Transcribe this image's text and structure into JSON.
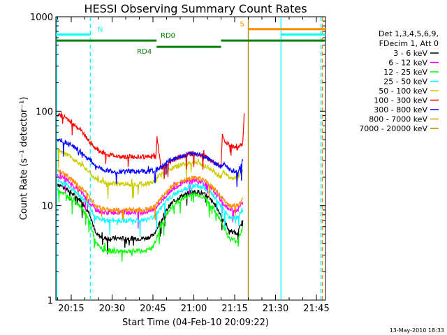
{
  "chart_data": {
    "type": "line",
    "title": "HESSI Observing Summary Count Rates",
    "xlabel": "Start Time (04-Feb-10 20:09:22)",
    "ylabel": "Count Rate (s⁻¹ detector⁻¹)",
    "y_scale": "log",
    "ylim": [
      1,
      1000
    ],
    "xlim": [
      "20:09:22",
      "21:48:20"
    ],
    "x_ticks": [
      "20:15",
      "20:30",
      "20:45",
      "21:00",
      "21:15",
      "21:30",
      "21:45"
    ],
    "y_ticks": [
      "1",
      "10",
      "100",
      "1000"
    ],
    "timestamp": "13-May-2010 18:33",
    "legend": {
      "placement": "top-right",
      "header": [
        "Det 1,3,4,5,6,9,",
        "FDecim 1, Att 0"
      ],
      "entries": [
        {
          "label": "3 - 6 keV",
          "color": "#000000"
        },
        {
          "label": "6 - 12 keV",
          "color": "#ff00ff"
        },
        {
          "label": "12 - 25 keV",
          "color": "#00ff00"
        },
        {
          "label": "25 - 50 keV",
          "color": "#00ffff"
        },
        {
          "label": "50 - 100 keV",
          "color": "#cccc00"
        },
        {
          "label": "100 - 300 keV",
          "color": "#ff0000"
        },
        {
          "label": "300 - 800 keV",
          "color": "#0000ff"
        },
        {
          "label": "800 - 7000 keV",
          "color": "#ff8c00"
        },
        {
          "label": "7000 - 20000 keV",
          "color": "#b8860b"
        }
      ]
    },
    "annotations": [
      {
        "label": "N",
        "color": "#00ffff",
        "start": "20:09:22",
        "end": "20:22:00",
        "y": 650
      },
      {
        "label": "RD0",
        "color": "#008000",
        "start": "20:09:22",
        "end": "20:46:20",
        "y": 560
      },
      {
        "label": "RD4",
        "color": "#008000",
        "start": "20:46:20",
        "end": "21:10:00",
        "y": 480
      },
      {
        "label": "",
        "color": "#008000",
        "start": "21:10:00",
        "end": "21:48:20",
        "y": 560
      },
      {
        "label": "S",
        "color": "#ff8c00",
        "start": "21:20:00",
        "end": "21:48:20",
        "y": 740
      },
      {
        "label": "",
        "color": "#00ffff",
        "start": "21:32:00",
        "end": "21:48:20",
        "y": 650
      }
    ],
    "vertical_lines": [
      {
        "time": "20:09:40",
        "color": "#00ffff",
        "style": "solid"
      },
      {
        "time": "20:22:00",
        "color": "#00ffff",
        "style": "dashed"
      },
      {
        "time": "21:20:00",
        "color": "#b8860b",
        "style": "solid"
      },
      {
        "time": "21:32:00",
        "color": "#00ffff",
        "style": "solid"
      },
      {
        "time": "21:46:40",
        "color": "#00ffff",
        "style": "dashed"
      },
      {
        "time": "21:47:10",
        "color": "#ff8c00",
        "style": "dashed"
      }
    ],
    "series": [
      {
        "name": "3 - 6 keV",
        "color": "#000000",
        "x": [
          "20:10",
          "20:13",
          "20:16",
          "20:19",
          "20:22",
          "20:24",
          "20:27",
          "20:30",
          "20:34",
          "20:38",
          "20:42",
          "20:45",
          "20:48",
          "20:51",
          "20:55",
          "20:59",
          "21:02",
          "21:05",
          "21:08",
          "21:11",
          "21:13",
          "21:16",
          "21:18"
        ],
        "y": [
          17,
          15,
          13,
          11,
          8,
          5,
          4.5,
          4.5,
          4.5,
          4.5,
          4.5,
          4.8,
          7,
          10,
          12.5,
          14,
          14,
          12.5,
          10,
          7,
          5.5,
          5,
          7
        ]
      },
      {
        "name": "6 - 12 keV",
        "color": "#ff00ff",
        "x": [
          "20:10",
          "20:13",
          "20:16",
          "20:19",
          "20:22",
          "20:24",
          "20:27",
          "20:30",
          "20:34",
          "20:38",
          "20:42",
          "20:45",
          "20:48",
          "20:51",
          "20:55",
          "20:59",
          "21:02",
          "21:05",
          "21:08",
          "21:11",
          "21:13",
          "21:16",
          "21:18"
        ],
        "y": [
          21,
          19,
          16,
          13.5,
          10.5,
          9,
          8.5,
          8.5,
          8.5,
          8.5,
          8.5,
          9,
          11,
          14,
          17,
          18.5,
          18.5,
          16.5,
          13.5,
          10.5,
          9,
          9,
          11
        ]
      },
      {
        "name": "12 - 25 keV",
        "color": "#00ff00",
        "x": [
          "20:10",
          "20:13",
          "20:16",
          "20:19",
          "20:22",
          "20:24",
          "20:27",
          "20:30",
          "20:34",
          "20:38",
          "20:42",
          "20:45",
          "20:48",
          "20:51",
          "20:55",
          "20:59",
          "21:02",
          "21:05",
          "21:08",
          "21:11",
          "21:13",
          "21:16",
          "21:18"
        ],
        "y": [
          15,
          13,
          11.5,
          9.5,
          6.5,
          4,
          3.3,
          3.3,
          3.3,
          3.3,
          3.3,
          3.6,
          6,
          9,
          11.5,
          13,
          13,
          11.5,
          8.5,
          6,
          4.5,
          4.2,
          6
        ]
      },
      {
        "name": "25 - 50 keV",
        "color": "#00ffff",
        "x": [
          "20:10",
          "20:13",
          "20:16",
          "20:19",
          "20:22",
          "20:24",
          "20:27",
          "20:30",
          "20:34",
          "20:38",
          "20:42",
          "20:45",
          "20:48",
          "20:51",
          "20:55",
          "20:59",
          "21:02",
          "21:05",
          "21:08",
          "21:11",
          "21:13",
          "21:16",
          "21:18"
        ],
        "y": [
          19,
          17,
          14.5,
          12,
          9.5,
          7.5,
          7,
          7,
          7,
          7,
          7,
          7.5,
          9.5,
          12,
          14.5,
          16,
          16,
          14.5,
          12,
          9,
          7.5,
          7.5,
          9
        ]
      },
      {
        "name": "50 - 100 keV",
        "color": "#cccc00",
        "x": [
          "20:10",
          "20:13",
          "20:16",
          "20:19",
          "20:22",
          "20:24",
          "20:27",
          "20:30",
          "20:34",
          "20:38",
          "20:42",
          "20:45",
          "20:46",
          "20:48",
          "20:51",
          "20:55",
          "20:59",
          "21:02",
          "21:05",
          "21:08",
          "21:10",
          "21:11",
          "21:13",
          "21:16",
          "21:18"
        ],
        "y": [
          38,
          35,
          31,
          27,
          22,
          19,
          17.5,
          17,
          17,
          17,
          17,
          17.5,
          20,
          21,
          24,
          27,
          28.5,
          28,
          25.5,
          22,
          20,
          23,
          20,
          19.5,
          24
        ]
      },
      {
        "name": "100 - 300 keV",
        "color": "#ff0000",
        "x": [
          "20:10",
          "20:13",
          "20:16",
          "20:19",
          "20:22",
          "20:24",
          "20:27",
          "20:30",
          "20:34",
          "20:38",
          "20:42",
          "20:45",
          "20:46",
          "20:46:30",
          "20:48",
          "20:51",
          "20:55",
          "20:59",
          "21:02",
          "21:05",
          "21:08",
          "21:10",
          "21:10:30",
          "21:11",
          "21:13",
          "21:16",
          "21:18",
          "21:18:30"
        ],
        "y": [
          92,
          85,
          73,
          60,
          47,
          40,
          36,
          34,
          33,
          33,
          33,
          33,
          33,
          52,
          25,
          29,
          33,
          35.5,
          35,
          32,
          28,
          26,
          60,
          50,
          44,
          40,
          46,
          95
        ]
      },
      {
        "name": "300 - 800 keV",
        "color": "#0000ff",
        "x": [
          "20:10",
          "20:13",
          "20:16",
          "20:19",
          "20:22",
          "20:24",
          "20:27",
          "20:30",
          "20:34",
          "20:38",
          "20:42",
          "20:45",
          "20:46",
          "20:48",
          "20:51",
          "20:55",
          "20:59",
          "21:02",
          "21:05",
          "21:08",
          "21:10",
          "21:11",
          "21:13",
          "21:16",
          "21:18"
        ],
        "y": [
          50,
          47,
          42,
          36,
          30,
          26,
          24,
          23,
          23,
          23,
          23,
          23,
          24,
          26,
          30,
          33,
          35.5,
          35,
          32,
          28,
          25,
          28,
          24,
          23,
          30
        ]
      },
      {
        "name": "800 - 7000 keV",
        "color": "#ff8c00",
        "x": [
          "20:10",
          "20:13",
          "20:16",
          "20:19",
          "20:22",
          "20:24",
          "20:27",
          "20:30",
          "20:34",
          "20:38",
          "20:42",
          "20:45",
          "20:48",
          "20:51",
          "20:55",
          "20:59",
          "21:02",
          "21:05",
          "21:08",
          "21:11",
          "21:13",
          "21:16",
          "21:18"
        ],
        "y": [
          24,
          21,
          18,
          15,
          12,
          10,
          9.3,
          9,
          9,
          9,
          9,
          9.5,
          12,
          15,
          18,
          19.5,
          19.5,
          17.5,
          14.5,
          11.5,
          10,
          10,
          12
        ]
      }
    ]
  }
}
